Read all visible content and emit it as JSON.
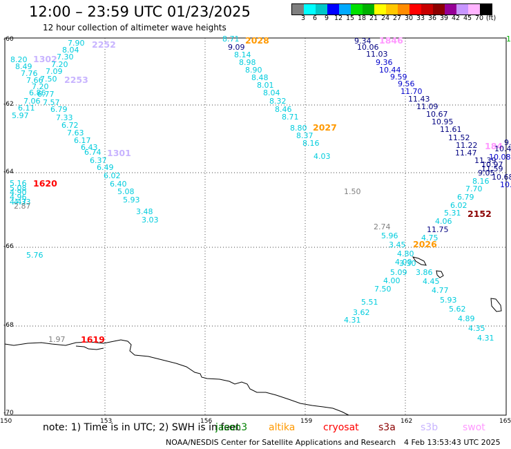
{
  "header": {
    "title": "12:00 – 23:59 UTC 01/23/2025",
    "subtitle": "12 hour collection of altimeter wave heights"
  },
  "colorbar": {
    "colors": [
      "#7f7f7f",
      "#00ffff",
      "#00c8c8",
      "#0000ff",
      "#00aaff",
      "#00e000",
      "#00b000",
      "#ffff00",
      "#ffc800",
      "#ff8c00",
      "#ff0000",
      "#c80000",
      "#8c0000",
      "#960096",
      "#c896ff",
      "#ffb4ff",
      "#000000"
    ],
    "labels": [
      "3",
      "6",
      "9",
      "12",
      "15",
      "18",
      "21",
      "24",
      "27",
      "30",
      "33",
      "36",
      "39",
      "42",
      "45",
      "70",
      "(ft)"
    ]
  },
  "axes": {
    "lat_labels": [
      "-60",
      "-62",
      "-64",
      "-66",
      "-68",
      "-70"
    ],
    "lon_labels": [
      "150",
      "153",
      "156",
      "159",
      "162",
      "165"
    ]
  },
  "legend": {
    "note": "note:  1) Time is in UTC;  2) SWH is in feet",
    "satellites": [
      {
        "name": "jason3",
        "color": "#008000"
      },
      {
        "name": "altika",
        "color": "#ff9900"
      },
      {
        "name": "cryosat",
        "color": "#ff0000"
      },
      {
        "name": "s3a",
        "color": "#8b0000"
      },
      {
        "name": "s3b",
        "color": "#c8b4ff"
      },
      {
        "name": "swot",
        "color": "#ff99ff"
      }
    ]
  },
  "footer": {
    "credit": "NOAA/NESDIS Center for Satellite Applications and Research",
    "timestamp": "4 Feb 13:53:43 UTC 2025"
  },
  "time_labels": [
    "2252",
    "1302",
    "2253",
    "1301",
    "1620",
    "1619",
    "2028",
    "2027",
    "1846",
    "184",
    "2152",
    "2026"
  ],
  "wave_heights": [
    "7.90",
    "8.04",
    "7.30",
    "8.20",
    "8.49",
    "7.20",
    "7.76",
    "7.09",
    "7.66",
    "7.50",
    "7.20",
    "6.77",
    "6.86",
    "7.06",
    "7.57",
    "6.11",
    "6.79",
    "5.97",
    "7.33",
    "6.72",
    "7.63",
    "6.17",
    "6.43",
    "6.74",
    "6.37",
    "6.49",
    "6.02",
    "6.40",
    "5.08",
    "5.93",
    "3.48",
    "3.03",
    "5.16",
    "5.08",
    "4.90",
    "4.96",
    "4.47",
    "4.33",
    "2.87",
    "5.76",
    "1.97",
    "8.71",
    "9.09",
    "8.14",
    "8.98",
    "8.90",
    "8.48",
    "8.01",
    "8.04",
    "8.32",
    "8.46",
    "8.71",
    "8.80",
    "8.37",
    "8.16",
    "4.03",
    "9.34",
    "10.06",
    "11.03",
    "9.36",
    "10.44",
    "9.59",
    "9.56",
    "11.70",
    "11.43",
    "11.09",
    "10.67",
    "10.95",
    "11.61",
    "11.52",
    "11.22",
    "11.47",
    "11.39",
    "10.97",
    "11.59",
    "9.05",
    "10.68",
    "9.",
    "10.4",
    "10.08",
    "10.",
    "1.50",
    "1.",
    "8.16",
    "7.70",
    "6.79",
    "6.02",
    "4.06",
    "5.31",
    "11.75",
    "4.75",
    "2.74",
    "5.96",
    "3.45",
    "4.80",
    "4.00",
    "3.30",
    "3.86",
    "5.09",
    "4.45",
    "4.00",
    "4.77",
    "7.50",
    "5.93",
    "5.51",
    "5.62",
    "3.62",
    "4.89",
    "4.31",
    "4.35",
    "4.31"
  ]
}
